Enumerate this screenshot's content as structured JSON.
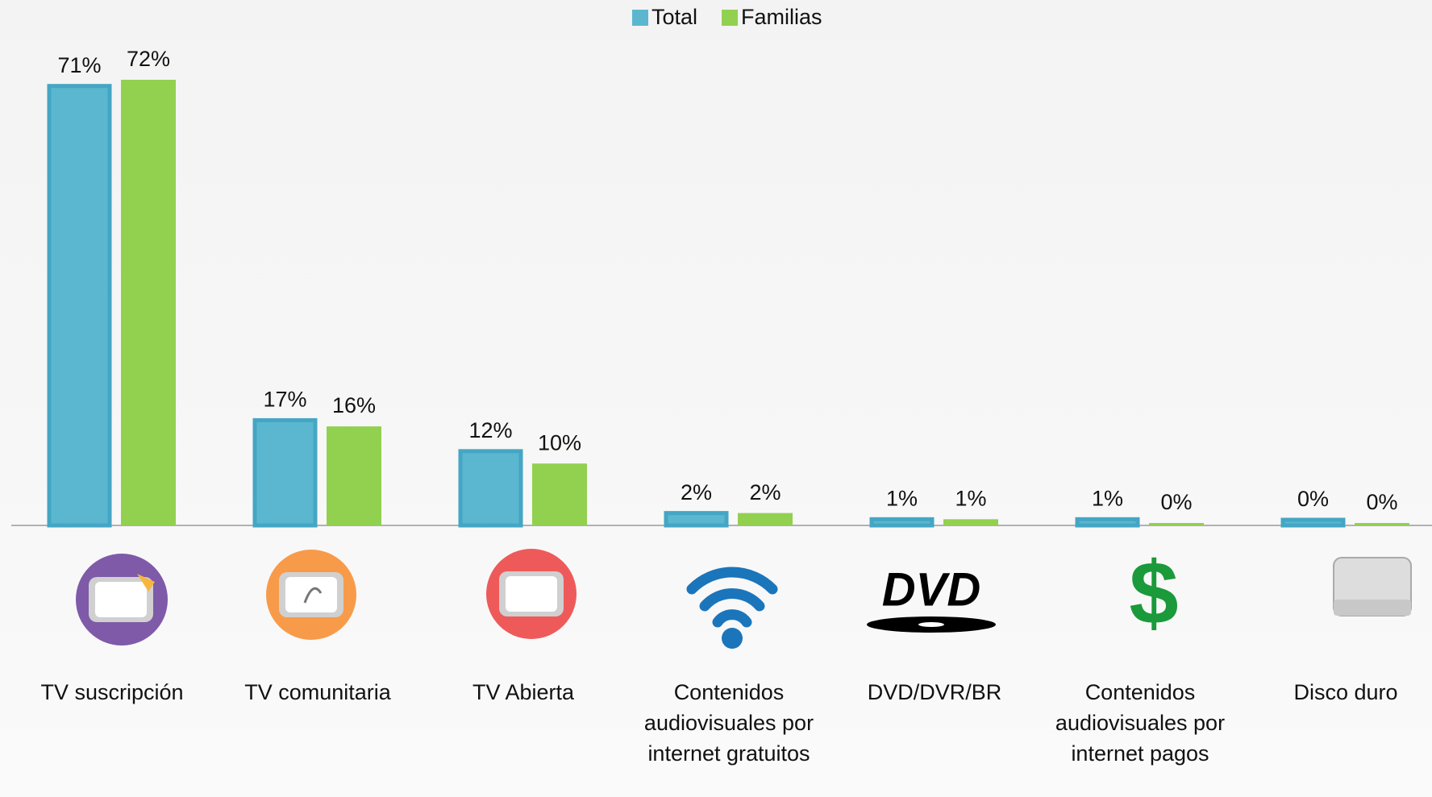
{
  "chart_data": {
    "type": "bar",
    "categories": [
      "TV suscripción",
      "TV comunitaria",
      "TV Abierta",
      "Contenidos audiovisuales por internet gratuitos",
      "DVD/DVR/BR",
      "Contenidos audiovisuales por internet pagos",
      "Disco duro"
    ],
    "series": [
      {
        "name": "Total",
        "color": "#5bb7cf",
        "values": [
          71,
          17,
          12,
          2,
          1,
          1,
          0
        ],
        "value_labels": [
          "71%",
          "17%",
          "12%",
          "2%",
          "1%",
          "1%",
          "0%"
        ]
      },
      {
        "name": "Familias",
        "color": "#92d050",
        "values": [
          72,
          16,
          10,
          2,
          1,
          0,
          0
        ],
        "value_labels": [
          "72%",
          "16%",
          "10%",
          "2%",
          "1%",
          "0%",
          "0%"
        ]
      }
    ],
    "legend": "top"
  }
}
